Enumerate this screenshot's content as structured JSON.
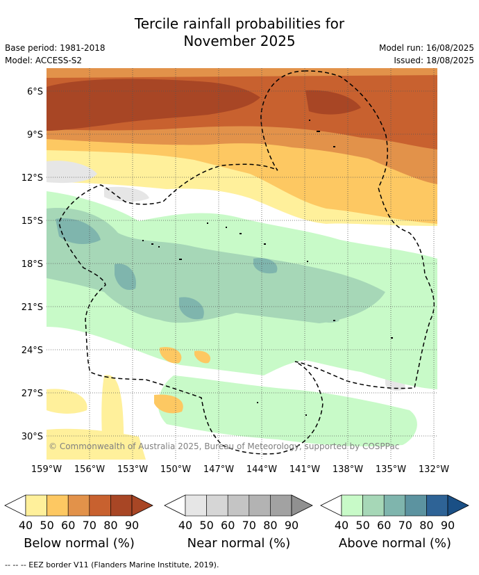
{
  "title_line1": "Tercile rainfall probabilities for",
  "title_line2": "November 2025",
  "meta_left": [
    "Base period: 1981-2018",
    "Model: ACCESS-S2"
  ],
  "meta_right": [
    "Model run: 16/08/2025",
    "Issued: 18/08/2025"
  ],
  "copyright": "© Commonwealth of Australia 2025, Bureau of Meteorology, supported by COSPPac",
  "lat_labels": [
    "6°S",
    "9°S",
    "12°S",
    "15°S",
    "18°S",
    "21°S",
    "24°S",
    "27°S",
    "30°S"
  ],
  "lon_labels": [
    "159°W",
    "156°W",
    "153°W",
    "150°W",
    "147°W",
    "144°W",
    "141°W",
    "138°W",
    "135°W",
    "132°W"
  ],
  "legends": [
    {
      "label": "Below normal (%)",
      "ticks": [
        "40",
        "50",
        "60",
        "70",
        "80",
        "90"
      ],
      "colors": [
        "#fff09b",
        "#fdc862",
        "#e2924a",
        "#c8612f",
        "#a84625",
        "#a84625"
      ]
    },
    {
      "label": "Near normal (%)",
      "ticks": [
        "40",
        "50",
        "60",
        "70",
        "80",
        "90"
      ],
      "colors": [
        "#e6e6e6",
        "#d6d6d6",
        "#c4c4c4",
        "#b3b3b3",
        "#a2a2a2",
        "#909090"
      ]
    },
    {
      "label": "Above normal (%)",
      "ticks": [
        "40",
        "50",
        "60",
        "70",
        "80",
        "90"
      ],
      "colors": [
        "#c8fac8",
        "#a6d7b7",
        "#7fb5ad",
        "#5c93a0",
        "#2e6396",
        "#1a4f85"
      ]
    }
  ],
  "footnote": "-- -- -- EEZ border V11 (Flanders Marine Institute, 2019)."
}
